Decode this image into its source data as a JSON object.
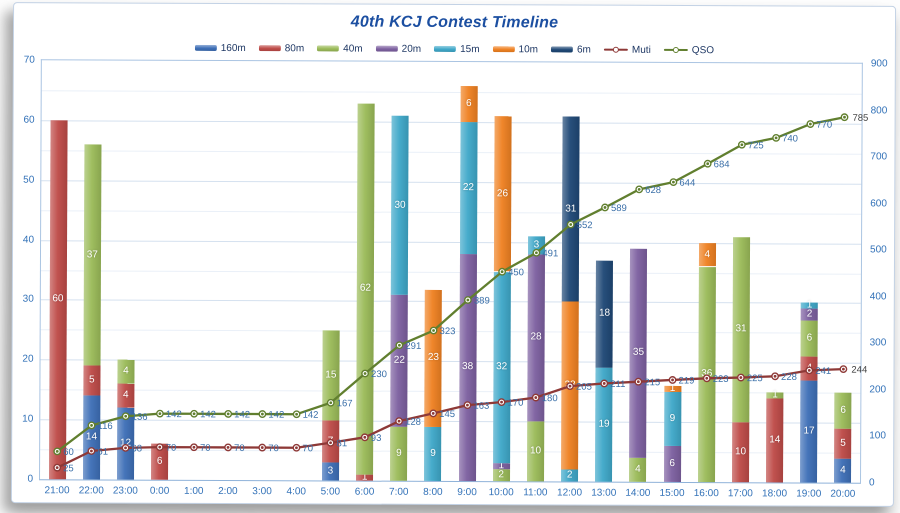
{
  "chart_data": {
    "type": "bar",
    "combo": "stacked-column with cumulative lines on secondary axis",
    "title": "40th KCJ Contest Timeline",
    "categories": [
      "21:00",
      "22:00",
      "23:00",
      "0:00",
      "1:00",
      "2:00",
      "3:00",
      "4:00",
      "5:00",
      "6:00",
      "7:00",
      "8:00",
      "9:00",
      "10:00",
      "11:00",
      "12:00",
      "13:00",
      "14:00",
      "15:00",
      "16:00",
      "17:00",
      "18:00",
      "19:00",
      "20:00"
    ],
    "bar_series": [
      {
        "name": "160m",
        "color": "#3E6FB7",
        "values": [
          0,
          14,
          12,
          0,
          0,
          0,
          0,
          0,
          3,
          0,
          0,
          0,
          0,
          0,
          0,
          0,
          0,
          0,
          0,
          0,
          0,
          0,
          17,
          4
        ]
      },
      {
        "name": "80m",
        "color": "#BE4B48",
        "values": [
          60,
          5,
          4,
          6,
          0,
          0,
          0,
          0,
          7,
          1,
          0,
          0,
          0,
          0,
          0,
          0,
          0,
          0,
          0,
          0,
          10,
          14,
          4,
          5
        ]
      },
      {
        "name": "40m",
        "color": "#9BBB59",
        "values": [
          0,
          37,
          4,
          0,
          0,
          0,
          0,
          0,
          15,
          62,
          9,
          0,
          0,
          2,
          10,
          0,
          0,
          4,
          0,
          36,
          31,
          1,
          6,
          6
        ]
      },
      {
        "name": "20m",
        "color": "#7D60A0",
        "values": [
          0,
          0,
          0,
          0,
          0,
          0,
          0,
          0,
          0,
          0,
          22,
          0,
          38,
          1,
          28,
          0,
          0,
          35,
          6,
          0,
          0,
          0,
          2,
          0
        ]
      },
      {
        "name": "15m",
        "color": "#3FA8C9",
        "values": [
          0,
          0,
          0,
          0,
          0,
          0,
          0,
          0,
          0,
          0,
          30,
          9,
          22,
          32,
          3,
          2,
          19,
          0,
          9,
          0,
          0,
          0,
          1,
          0
        ]
      },
      {
        "name": "10m",
        "color": "#EF8122",
        "values": [
          0,
          0,
          0,
          0,
          0,
          0,
          0,
          0,
          0,
          0,
          0,
          23,
          6,
          26,
          0,
          28,
          0,
          0,
          1,
          4,
          0,
          0,
          0,
          0
        ]
      },
      {
        "name": "6m",
        "color": "#1F4876",
        "values": [
          0,
          0,
          0,
          0,
          0,
          0,
          0,
          0,
          0,
          0,
          0,
          0,
          0,
          0,
          0,
          31,
          18,
          0,
          0,
          0,
          0,
          0,
          0,
          0
        ]
      }
    ],
    "line_series": [
      {
        "name": "Muti",
        "color": "#8E3937",
        "axis": "right",
        "values": [
          25,
          61,
          68,
          70,
          70,
          70,
          70,
          70,
          81,
          93,
          128,
          145,
          163,
          170,
          180,
          205,
          211,
          215,
          219,
          223,
          225,
          228,
          241,
          244
        ]
      },
      {
        "name": "QSO",
        "color": "#617F2F",
        "axis": "right",
        "values": [
          60,
          116,
          136,
          142,
          142,
          142,
          142,
          142,
          167,
          230,
          291,
          323,
          389,
          450,
          491,
          552,
          589,
          628,
          644,
          684,
          725,
          740,
          770,
          785
        ]
      }
    ],
    "left_axis": {
      "min": 0,
      "max": 70,
      "step": 10,
      "minor_step": 5
    },
    "right_axis": {
      "min": 0,
      "max": 900,
      "step": 100
    },
    "legend_position": "top",
    "grid": true,
    "value_label_color": "#3A6FA8",
    "final_label_color": "#404040",
    "bar_label_color": "#ffffff"
  }
}
